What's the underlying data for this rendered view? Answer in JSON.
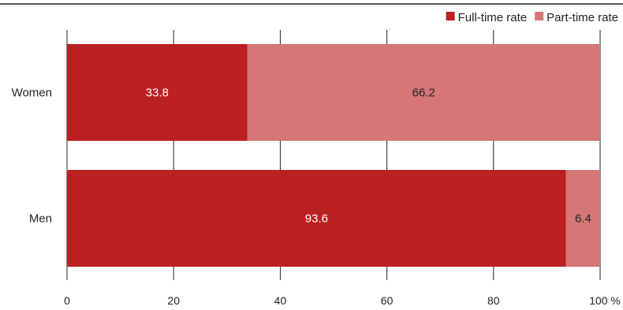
{
  "chart_data": {
    "type": "bar",
    "orientation": "horizontal",
    "stacked": true,
    "categories": [
      "Women",
      "Men"
    ],
    "series": [
      {
        "name": "Full-time rate",
        "values": [
          33.8,
          93.6
        ],
        "color": "#bb2022",
        "label_color": "#ffffff"
      },
      {
        "name": "Part-time rate",
        "values": [
          66.2,
          6.4
        ],
        "color": "#d57776",
        "label_color": "#222222"
      }
    ],
    "data_labels": [
      [
        "33.8",
        "93.6"
      ],
      [
        "66.2",
        "6.4"
      ]
    ],
    "xlim": [
      0,
      100
    ],
    "xticks": [
      0,
      20,
      40,
      60,
      80,
      100
    ],
    "xtick_labels": [
      "0",
      "20",
      "40",
      "60",
      "80",
      "100 %"
    ],
    "grid": "vertical",
    "legend_position": "top-right",
    "title": "",
    "xlabel": "",
    "ylabel": ""
  }
}
